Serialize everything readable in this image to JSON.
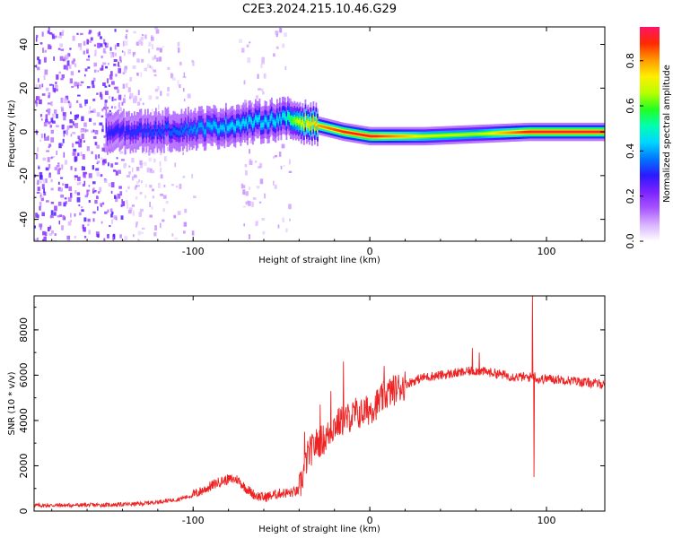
{
  "title": "C2E3.2024.215.10.46.G29",
  "colors": {
    "snr_line": "#ee2222",
    "colormap": [
      "#ffffff",
      "#d9b3ff",
      "#a855ff",
      "#7a22ff",
      "#2a1aff",
      "#0077ff",
      "#00d6ff",
      "#00ffb0",
      "#22ff22",
      "#b8ff00",
      "#ffee00",
      "#ff9900",
      "#ff2a00",
      "#ff1266"
    ]
  },
  "chart_data": [
    {
      "type": "heatmap",
      "xlabel": "Height of straight line (km)",
      "ylabel": "Frequency (Hz)",
      "xlim": [
        -190,
        133
      ],
      "ylim": [
        -50,
        48
      ],
      "x_ticks": [
        -100,
        0,
        100
      ],
      "y_ticks": [
        -40,
        -20,
        0,
        20,
        40
      ],
      "colorbar": {
        "label": "Normalized spectral amplitude",
        "range": [
          0,
          0.95
        ],
        "ticks": [
          0.0,
          0.2,
          0.4,
          0.6,
          0.8
        ]
      },
      "signal_track": [
        {
          "x": -140,
          "freq": 0,
          "amp": 0.3
        },
        {
          "x": -110,
          "freq": 1,
          "amp": 0.35
        },
        {
          "x": -90,
          "freq": 2,
          "amp": 0.42
        },
        {
          "x": -70,
          "freq": 4,
          "amp": 0.45
        },
        {
          "x": -50,
          "freq": 6,
          "amp": 0.45
        },
        {
          "x": -40,
          "freq": 5,
          "amp": 0.7
        },
        {
          "x": -30,
          "freq": 3,
          "amp": 0.8
        },
        {
          "x": -15,
          "freq": 0,
          "amp": 0.88
        },
        {
          "x": 0,
          "freq": -2,
          "amp": 0.9
        },
        {
          "x": 30,
          "freq": -2,
          "amp": 0.7
        },
        {
          "x": 60,
          "freq": -1,
          "amp": 0.65
        },
        {
          "x": 90,
          "freq": 0,
          "amp": 0.9
        },
        {
          "x": 133,
          "freq": 0,
          "amp": 0.9
        }
      ]
    },
    {
      "type": "line",
      "xlabel": "Height of straight line (km)",
      "ylabel": "SNR (10 * v/v)",
      "xlim": [
        -190,
        133
      ],
      "ylim": [
        0,
        9500
      ],
      "x_ticks": [
        -100,
        0,
        100
      ],
      "y_ticks": [
        0,
        2000,
        4000,
        6000,
        8000
      ],
      "series": [
        {
          "x": [
            -190,
            -170,
            -150,
            -130,
            -110,
            -100,
            -90,
            -85,
            -80,
            -75,
            -70,
            -65,
            -60,
            -55,
            -50,
            -45,
            -40,
            -35,
            -30,
            -25,
            -20,
            -15,
            -10,
            -5,
            0,
            5,
            10,
            20,
            30,
            40,
            50,
            60,
            70,
            80,
            90,
            93,
            95,
            100,
            110,
            120,
            133
          ],
          "y": [
            250,
            260,
            270,
            320,
            500,
            700,
            1100,
            1300,
            1400,
            1400,
            1000,
            700,
            600,
            700,
            800,
            800,
            900,
            2500,
            3000,
            3200,
            3800,
            4000,
            4200,
            4300,
            4500,
            4800,
            5200,
            5600,
            5900,
            6000,
            6100,
            6200,
            6100,
            5950,
            5900,
            6000,
            5800,
            5850,
            5800,
            5700,
            5600
          ]
        }
      ],
      "spikes": [
        {
          "x": -37,
          "y": 3500
        },
        {
          "x": -28,
          "y": 4700
        },
        {
          "x": -22,
          "y": 5300
        },
        {
          "x": -15,
          "y": 6600
        },
        {
          "x": -8,
          "y": 5000
        },
        {
          "x": 8,
          "y": 6400
        },
        {
          "x": 58,
          "y": 7200
        },
        {
          "x": 62,
          "y": 7000
        },
        {
          "x": 92,
          "y": 9500
        },
        {
          "x": 93,
          "y": 1500
        }
      ]
    }
  ]
}
